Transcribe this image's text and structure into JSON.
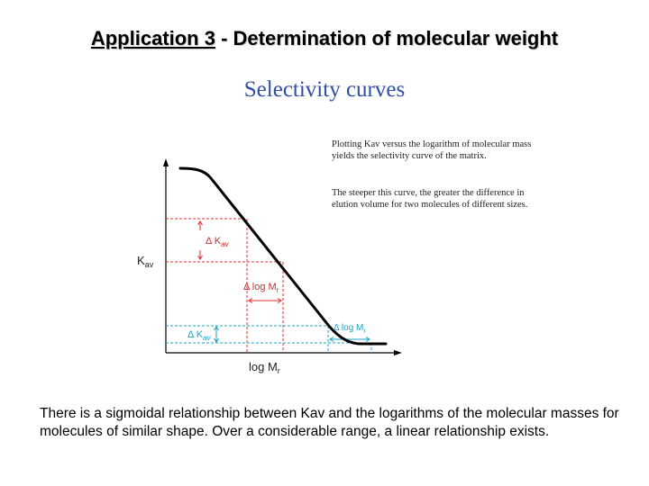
{
  "title": {
    "underlined": "Application 3",
    "separator": " - ",
    "rest": "Determination of molecular weight"
  },
  "subtitle": "Selectivity curves",
  "note_top": "Plotting Kav versus the logarithm of molecular mass yields the selectivity curve of the matrix.",
  "note_bottom": "The steeper this curve, the greater the difference in elution volume for two molecules of different sizes.",
  "diagram": {
    "y_axis_label": "K",
    "y_axis_label_sub": "av",
    "x_axis_label": "log M",
    "x_axis_label_sub": "r",
    "delta_kav_red": "Δ K",
    "delta_kav_red_sub": "av",
    "delta_logm_red": "Δ log M",
    "delta_logm_red_sub": "r",
    "delta_kav_blue": "Δ K",
    "delta_kav_blue_sub": "av",
    "delta_logm_blue": "Δ log M",
    "delta_logm_blue_sub": "r",
    "colors": {
      "curve": "#000000",
      "red_guides": "#e03030",
      "blue_guides": "#1aa3c8"
    }
  },
  "caption": "There is a sigmoidal relationship between Kav and the logarithms of the molecular masses for molecules of similar shape. Over a considerable range, a linear relationship exists."
}
